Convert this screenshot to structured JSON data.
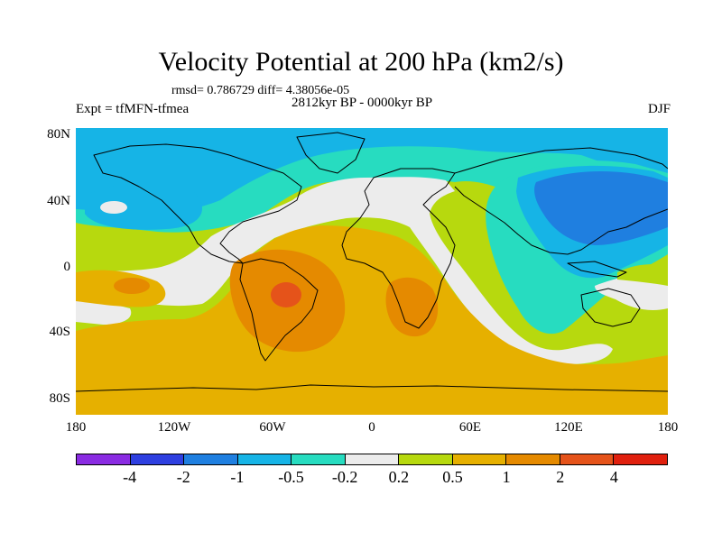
{
  "title": "Velocity Potential at 200 hPa (km2/s)",
  "stats": "rmsd= 0.786729 diff= 4.38056e-05",
  "period": "2812kyr BP - 0000kyr BP",
  "experiment": "Expt = tfMFN-tfmea",
  "season": "DJF",
  "lat_labels": [
    "80N",
    "40N",
    "0",
    "40S",
    "80S"
  ],
  "lon_labels": [
    "180",
    "120W",
    "60W",
    "0",
    "60E",
    "120E",
    "180"
  ],
  "colorbar": {
    "labels": [
      "-4",
      "-2",
      "-1",
      "-0.5",
      "-0.2",
      "0.2",
      "0.5",
      "1",
      "2",
      "4"
    ],
    "colors": [
      "#8a2be2",
      "#2e3fe0",
      "#1f7fe0",
      "#16b4e6",
      "#27dcc0",
      "#ececec",
      "#b7d90e",
      "#e6b000",
      "#e58a00",
      "#e5531a",
      "#e0200e"
    ]
  },
  "field_colors": {
    "ocean_bg": "#b7d90e",
    "neg_strong": "#1f7fe0",
    "neg_mid": "#16b4e6",
    "neg_weak": "#27dcc0",
    "neutral": "#ececec",
    "pos_weak": "#b7d90e",
    "pos_mid": "#e6b000",
    "pos_strong": "#e58a00",
    "pos_max": "#e5531a"
  }
}
